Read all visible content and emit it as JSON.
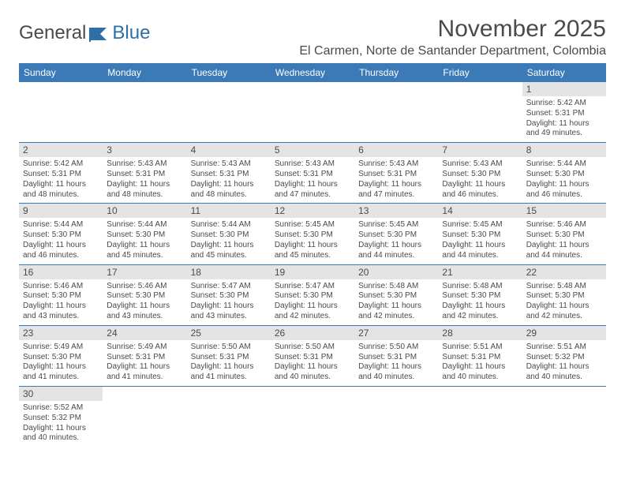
{
  "brand": {
    "part1": "General",
    "part2": "Blue"
  },
  "colors": {
    "header_bg": "#3b79b7",
    "header_text": "#ffffff",
    "daynum_bg": "#e4e4e4",
    "border": "#3b79b7",
    "text": "#4a4a4a",
    "brand_blue": "#2f6fa7"
  },
  "title": "November 2025",
  "location": "El Carmen, Norte de Santander Department, Colombia",
  "weekdays": [
    "Sunday",
    "Monday",
    "Tuesday",
    "Wednesday",
    "Thursday",
    "Friday",
    "Saturday"
  ],
  "grid": [
    [
      null,
      null,
      null,
      null,
      null,
      null,
      {
        "n": "1",
        "sr": "Sunrise: 5:42 AM",
        "ss": "Sunset: 5:31 PM",
        "dl": "Daylight: 11 hours and 49 minutes."
      }
    ],
    [
      {
        "n": "2",
        "sr": "Sunrise: 5:42 AM",
        "ss": "Sunset: 5:31 PM",
        "dl": "Daylight: 11 hours and 48 minutes."
      },
      {
        "n": "3",
        "sr": "Sunrise: 5:43 AM",
        "ss": "Sunset: 5:31 PM",
        "dl": "Daylight: 11 hours and 48 minutes."
      },
      {
        "n": "4",
        "sr": "Sunrise: 5:43 AM",
        "ss": "Sunset: 5:31 PM",
        "dl": "Daylight: 11 hours and 48 minutes."
      },
      {
        "n": "5",
        "sr": "Sunrise: 5:43 AM",
        "ss": "Sunset: 5:31 PM",
        "dl": "Daylight: 11 hours and 47 minutes."
      },
      {
        "n": "6",
        "sr": "Sunrise: 5:43 AM",
        "ss": "Sunset: 5:31 PM",
        "dl": "Daylight: 11 hours and 47 minutes."
      },
      {
        "n": "7",
        "sr": "Sunrise: 5:43 AM",
        "ss": "Sunset: 5:30 PM",
        "dl": "Daylight: 11 hours and 46 minutes."
      },
      {
        "n": "8",
        "sr": "Sunrise: 5:44 AM",
        "ss": "Sunset: 5:30 PM",
        "dl": "Daylight: 11 hours and 46 minutes."
      }
    ],
    [
      {
        "n": "9",
        "sr": "Sunrise: 5:44 AM",
        "ss": "Sunset: 5:30 PM",
        "dl": "Daylight: 11 hours and 46 minutes."
      },
      {
        "n": "10",
        "sr": "Sunrise: 5:44 AM",
        "ss": "Sunset: 5:30 PM",
        "dl": "Daylight: 11 hours and 45 minutes."
      },
      {
        "n": "11",
        "sr": "Sunrise: 5:44 AM",
        "ss": "Sunset: 5:30 PM",
        "dl": "Daylight: 11 hours and 45 minutes."
      },
      {
        "n": "12",
        "sr": "Sunrise: 5:45 AM",
        "ss": "Sunset: 5:30 PM",
        "dl": "Daylight: 11 hours and 45 minutes."
      },
      {
        "n": "13",
        "sr": "Sunrise: 5:45 AM",
        "ss": "Sunset: 5:30 PM",
        "dl": "Daylight: 11 hours and 44 minutes."
      },
      {
        "n": "14",
        "sr": "Sunrise: 5:45 AM",
        "ss": "Sunset: 5:30 PM",
        "dl": "Daylight: 11 hours and 44 minutes."
      },
      {
        "n": "15",
        "sr": "Sunrise: 5:46 AM",
        "ss": "Sunset: 5:30 PM",
        "dl": "Daylight: 11 hours and 44 minutes."
      }
    ],
    [
      {
        "n": "16",
        "sr": "Sunrise: 5:46 AM",
        "ss": "Sunset: 5:30 PM",
        "dl": "Daylight: 11 hours and 43 minutes."
      },
      {
        "n": "17",
        "sr": "Sunrise: 5:46 AM",
        "ss": "Sunset: 5:30 PM",
        "dl": "Daylight: 11 hours and 43 minutes."
      },
      {
        "n": "18",
        "sr": "Sunrise: 5:47 AM",
        "ss": "Sunset: 5:30 PM",
        "dl": "Daylight: 11 hours and 43 minutes."
      },
      {
        "n": "19",
        "sr": "Sunrise: 5:47 AM",
        "ss": "Sunset: 5:30 PM",
        "dl": "Daylight: 11 hours and 42 minutes."
      },
      {
        "n": "20",
        "sr": "Sunrise: 5:48 AM",
        "ss": "Sunset: 5:30 PM",
        "dl": "Daylight: 11 hours and 42 minutes."
      },
      {
        "n": "21",
        "sr": "Sunrise: 5:48 AM",
        "ss": "Sunset: 5:30 PM",
        "dl": "Daylight: 11 hours and 42 minutes."
      },
      {
        "n": "22",
        "sr": "Sunrise: 5:48 AM",
        "ss": "Sunset: 5:30 PM",
        "dl": "Daylight: 11 hours and 42 minutes."
      }
    ],
    [
      {
        "n": "23",
        "sr": "Sunrise: 5:49 AM",
        "ss": "Sunset: 5:30 PM",
        "dl": "Daylight: 11 hours and 41 minutes."
      },
      {
        "n": "24",
        "sr": "Sunrise: 5:49 AM",
        "ss": "Sunset: 5:31 PM",
        "dl": "Daylight: 11 hours and 41 minutes."
      },
      {
        "n": "25",
        "sr": "Sunrise: 5:50 AM",
        "ss": "Sunset: 5:31 PM",
        "dl": "Daylight: 11 hours and 41 minutes."
      },
      {
        "n": "26",
        "sr": "Sunrise: 5:50 AM",
        "ss": "Sunset: 5:31 PM",
        "dl": "Daylight: 11 hours and 40 minutes."
      },
      {
        "n": "27",
        "sr": "Sunrise: 5:50 AM",
        "ss": "Sunset: 5:31 PM",
        "dl": "Daylight: 11 hours and 40 minutes."
      },
      {
        "n": "28",
        "sr": "Sunrise: 5:51 AM",
        "ss": "Sunset: 5:31 PM",
        "dl": "Daylight: 11 hours and 40 minutes."
      },
      {
        "n": "29",
        "sr": "Sunrise: 5:51 AM",
        "ss": "Sunset: 5:32 PM",
        "dl": "Daylight: 11 hours and 40 minutes."
      }
    ],
    [
      {
        "n": "30",
        "sr": "Sunrise: 5:52 AM",
        "ss": "Sunset: 5:32 PM",
        "dl": "Daylight: 11 hours and 40 minutes."
      },
      null,
      null,
      null,
      null,
      null,
      null
    ]
  ]
}
